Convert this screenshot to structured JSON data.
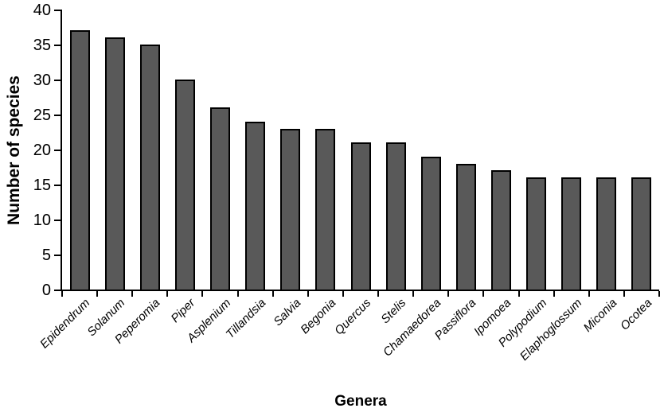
{
  "chart_data": {
    "type": "bar",
    "title": "",
    "xlabel": "Genera",
    "ylabel": "Number of species",
    "categories": [
      "Epidendrum",
      "Solanum",
      "Peperomia",
      "Piper",
      "Asplenium",
      "Tillandsia",
      "Salvia",
      "Begonia",
      "Quercus",
      "Stelis",
      "Chamaedorea",
      "Passiflora",
      "Ipomoea",
      "Polypodium",
      "Elaphoglossum",
      "Miconia",
      "Ocotea"
    ],
    "values": [
      37,
      36,
      35,
      30,
      26,
      24,
      23,
      23,
      21,
      21,
      19,
      18,
      17,
      16,
      16,
      16,
      16
    ],
    "ylim": [
      0,
      40
    ],
    "ytick_step": 5,
    "grid": false,
    "legend_position": "none",
    "bar_color": "#595959",
    "bar_border_color": "#000000",
    "axis_color": "#000000",
    "background_color": "#ffffff",
    "category_label_style": "italic-rotated-45"
  }
}
